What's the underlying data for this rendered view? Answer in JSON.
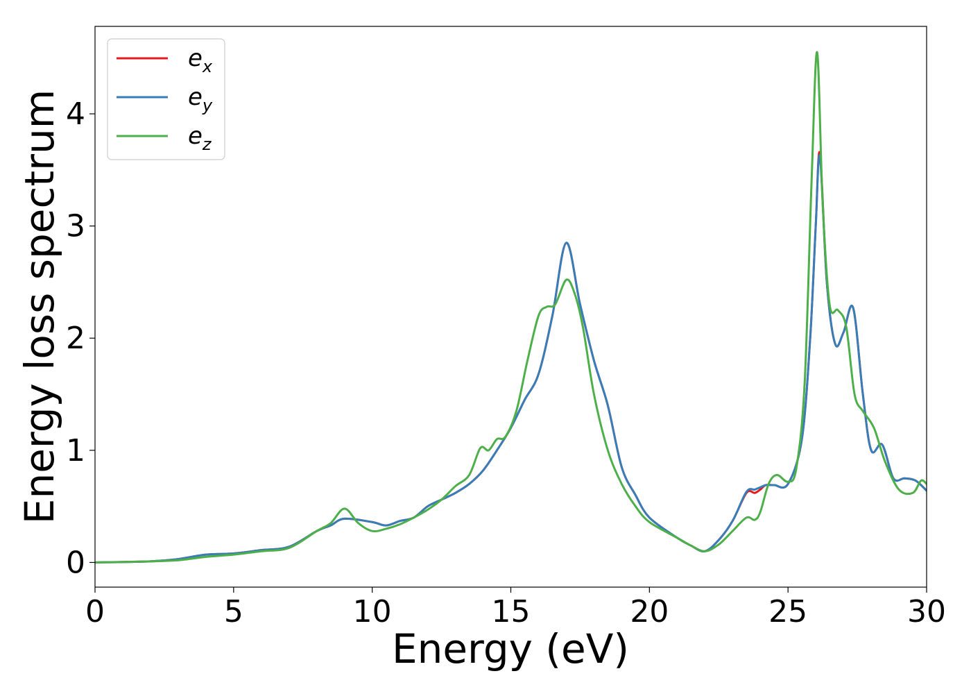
{
  "chart_data": {
    "type": "line",
    "title": "",
    "xlabel": "Energy (eV)",
    "ylabel": "Energy loss spectrum",
    "xlim": [
      0,
      30
    ],
    "ylim": [
      -0.22,
      4.78
    ],
    "x_ticks": [
      0,
      5,
      10,
      15,
      20,
      25,
      30
    ],
    "y_ticks": [
      0,
      1,
      2,
      3,
      4
    ],
    "grid": false,
    "legend_position": "top-left",
    "series": [
      {
        "name": "e_x",
        "legend_base": "e",
        "legend_sub": "x",
        "color": "#e41a1c",
        "x": [
          0,
          2,
          3,
          4,
          5,
          6,
          7,
          8,
          8.5,
          9,
          10,
          10.5,
          11,
          11.5,
          12,
          12.5,
          13,
          13.5,
          14,
          14.5,
          15,
          15.5,
          16,
          16.5,
          17,
          17.5,
          18,
          18.5,
          19,
          19.5,
          20,
          21,
          21.5,
          22,
          22.5,
          23,
          23.5,
          23.8,
          24,
          24.2,
          24.5,
          25,
          25.5,
          25.8,
          26,
          26.15,
          26.4,
          26.7,
          27,
          27.35,
          27.7,
          28,
          28.4,
          28.8,
          29.2,
          29.6,
          30
        ],
        "y": [
          0,
          0.01,
          0.03,
          0.07,
          0.08,
          0.11,
          0.14,
          0.28,
          0.33,
          0.39,
          0.36,
          0.33,
          0.37,
          0.4,
          0.5,
          0.56,
          0.62,
          0.7,
          0.82,
          1.0,
          1.2,
          1.45,
          1.68,
          2.2,
          2.85,
          2.3,
          1.8,
          1.4,
          0.85,
          0.6,
          0.4,
          0.22,
          0.15,
          0.1,
          0.2,
          0.37,
          0.62,
          0.62,
          0.65,
          0.69,
          0.69,
          0.7,
          1.1,
          2.0,
          3.0,
          3.65,
          2.5,
          1.95,
          2.05,
          2.27,
          1.5,
          1.0,
          1.05,
          0.75,
          0.75,
          0.73,
          0.64
        ]
      },
      {
        "name": "e_y",
        "legend_base": "e",
        "legend_sub": "y",
        "color": "#377eb8",
        "x": [
          0,
          2,
          3,
          4,
          5,
          6,
          7,
          8,
          8.5,
          9,
          10,
          10.5,
          11,
          11.5,
          12,
          12.5,
          13,
          13.5,
          14,
          14.5,
          15,
          15.5,
          16,
          16.5,
          17,
          17.5,
          18,
          18.5,
          19,
          19.5,
          20,
          21,
          21.5,
          22,
          22.5,
          23,
          23.5,
          23.8,
          24,
          24.2,
          24.5,
          25,
          25.5,
          25.8,
          26,
          26.15,
          26.4,
          26.7,
          27,
          27.35,
          27.7,
          28,
          28.4,
          28.8,
          29.2,
          29.6,
          30
        ],
        "y": [
          0,
          0.01,
          0.03,
          0.07,
          0.08,
          0.11,
          0.14,
          0.28,
          0.33,
          0.39,
          0.36,
          0.33,
          0.37,
          0.4,
          0.5,
          0.56,
          0.62,
          0.7,
          0.82,
          1.0,
          1.2,
          1.45,
          1.68,
          2.2,
          2.85,
          2.3,
          1.8,
          1.4,
          0.85,
          0.6,
          0.4,
          0.22,
          0.15,
          0.1,
          0.2,
          0.37,
          0.63,
          0.65,
          0.67,
          0.69,
          0.69,
          0.7,
          1.1,
          2.0,
          3.0,
          3.62,
          2.5,
          1.95,
          2.05,
          2.27,
          1.5,
          1.0,
          1.05,
          0.75,
          0.75,
          0.73,
          0.64
        ]
      },
      {
        "name": "e_z",
        "legend_base": "e",
        "legend_sub": "z",
        "color": "#4daf4a",
        "x": [
          0,
          2,
          3,
          4,
          5,
          6,
          7,
          8,
          8.5,
          9,
          9.5,
          10,
          10.5,
          11,
          11.5,
          12,
          12.5,
          13,
          13.5,
          13.9,
          14.2,
          14.5,
          14.8,
          15.2,
          15.6,
          16,
          16.3,
          16.6,
          17,
          17.3,
          17.6,
          18,
          18.5,
          19,
          19.5,
          20,
          21,
          21.5,
          22,
          22.5,
          23,
          23.5,
          23.8,
          24,
          24.3,
          24.6,
          25,
          25.3,
          25.6,
          25.85,
          26.05,
          26.25,
          26.5,
          26.8,
          27.1,
          27.4,
          27.7,
          28.1,
          28.5,
          29,
          29.5,
          29.8,
          30
        ],
        "y": [
          0,
          0.01,
          0.02,
          0.05,
          0.07,
          0.1,
          0.13,
          0.28,
          0.35,
          0.48,
          0.35,
          0.28,
          0.3,
          0.34,
          0.4,
          0.47,
          0.56,
          0.68,
          0.78,
          1.02,
          1.0,
          1.1,
          1.12,
          1.35,
          1.8,
          2.2,
          2.28,
          2.3,
          2.52,
          2.4,
          2.1,
          1.5,
          1.0,
          0.7,
          0.5,
          0.36,
          0.22,
          0.15,
          0.1,
          0.16,
          0.28,
          0.4,
          0.38,
          0.45,
          0.7,
          0.78,
          0.72,
          0.84,
          1.6,
          3.4,
          4.55,
          3.2,
          2.3,
          2.25,
          2.1,
          1.5,
          1.35,
          1.2,
          0.9,
          0.65,
          0.62,
          0.73,
          0.7
        ]
      }
    ]
  }
}
